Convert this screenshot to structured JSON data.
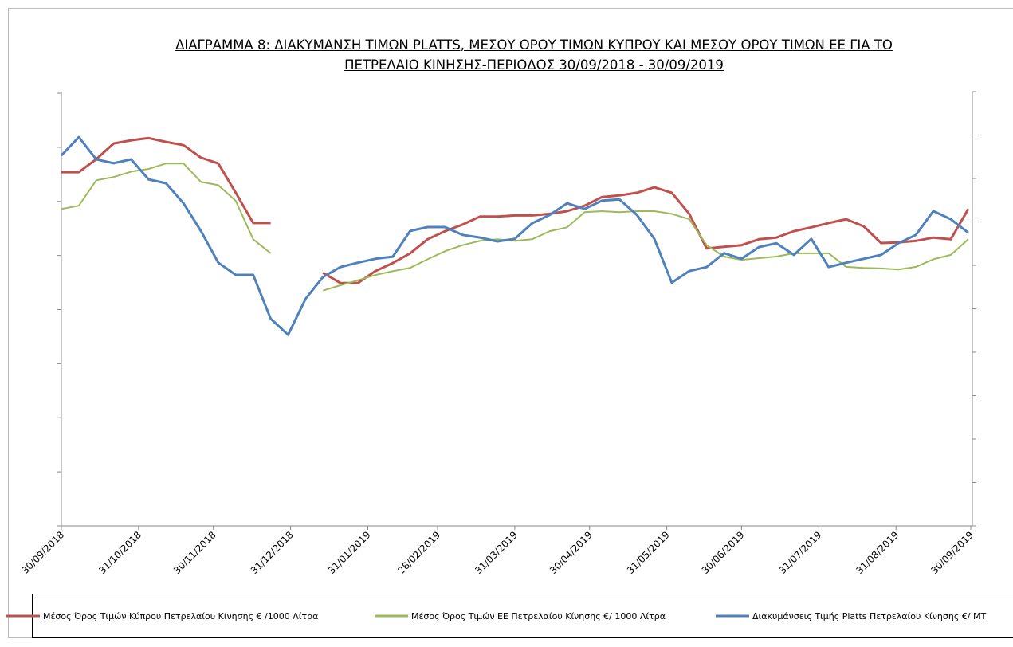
{
  "chart_data": {
    "type": "line",
    "title": "ΔΙΑΓΡΑΜΜΑ 8: ΔΙΑΚΥΜΑΝΣΗ ΤΙΜΩΝ PLATTS, ΜΕΣΟΥ ΟΡΟΥ ΤΙΜΩΝ ΚΥΠΡΟΥ ΚΑΙ ΜΕΣΟΥ ΟΡΟΥ ΤΙΜΩΝ ΕΕ ΓΙΑ ΤΟ ΠΕΤΡΕΛΑΙΟ ΚΙΝΗΣΗΣ-ΠΕΡΙΟΔΟΣ 30/09/2018 - 30/09/2019",
    "x": [
      "30/09/2018",
      "07/10/2018",
      "14/10/2018",
      "21/10/2018",
      "28/10/2018",
      "04/11/2018",
      "11/11/2018",
      "18/11/2018",
      "25/11/2018",
      "02/12/2018",
      "09/12/2018",
      "16/12/2018",
      "23/12/2018",
      "30/12/2018",
      "06/01/2019",
      "13/01/2019",
      "20/01/2019",
      "27/01/2019",
      "03/02/2019",
      "10/02/2019",
      "17/02/2019",
      "24/02/2019",
      "03/03/2019",
      "10/03/2019",
      "17/03/2019",
      "24/03/2019",
      "31/03/2019",
      "07/04/2019",
      "14/04/2019",
      "21/04/2019",
      "28/04/2019",
      "05/05/2019",
      "12/05/2019",
      "19/05/2019",
      "26/05/2019",
      "02/06/2019",
      "09/06/2019",
      "16/06/2019",
      "23/06/2019",
      "30/06/2019",
      "07/07/2019",
      "14/07/2019",
      "21/07/2019",
      "28/07/2019",
      "04/08/2019",
      "11/08/2019",
      "18/08/2019",
      "25/08/2019",
      "01/09/2019",
      "08/09/2019",
      "15/09/2019",
      "22/09/2019",
      "29/09/2019"
    ],
    "xlim": [
      "30/09/2018",
      "30/09/2019"
    ],
    "xticks": [
      "30/09/2018",
      "31/10/2018",
      "30/11/2018",
      "31/12/2018",
      "31/01/2019",
      "28/02/2019",
      "31/03/2019",
      "30/04/2019",
      "31/05/2019",
      "30/06/2019",
      "31/07/2019",
      "31/08/2019",
      "30/09/2019"
    ],
    "ylim": [
      0,
      800
    ],
    "yticks": [
      0,
      100,
      200,
      300,
      400,
      500,
      600,
      700,
      800
    ],
    "y2lim": [
      0,
      1000
    ],
    "y2ticks": [
      0,
      100,
      200,
      300,
      400,
      500,
      600,
      700,
      800,
      900,
      1000
    ],
    "series": [
      {
        "name": "Μέσος Όρος Τιμών Κύπρου Πετρελαίου Κίνησης  € /1000 Λίτρα",
        "color": "#c0504d",
        "values": [
          654,
          654,
          678,
          707,
          713,
          717,
          710,
          704,
          681,
          670,
          616,
          560,
          560,
          null,
          null,
          468,
          449,
          449,
          471,
          486,
          504,
          530,
          545,
          557,
          572,
          572,
          574,
          574,
          577,
          582,
          592,
          608,
          611,
          616,
          626,
          616,
          577,
          513,
          516,
          519,
          530,
          533,
          545,
          552,
          560,
          567,
          554,
          523,
          524,
          527,
          533,
          530,
          586
        ]
      },
      {
        "name": "Μέσος Όρος Τιμών ΕΕ Πετρελαίου Κίνησης  €/ 1000 Λίτρα",
        "color": "#9bbb59",
        "values": [
          586,
          592,
          639,
          645,
          655,
          660,
          670,
          670,
          636,
          630,
          601,
          530,
          504,
          null,
          null,
          435,
          445,
          454,
          464,
          471,
          477,
          493,
          508,
          519,
          527,
          530,
          527,
          530,
          545,
          552,
          580,
          582,
          580,
          582,
          582,
          577,
          567,
          519,
          498,
          492,
          495,
          498,
          504,
          504,
          504,
          479,
          477,
          476,
          474,
          479,
          493,
          501,
          530
        ]
      },
      {
        "name": "Διακυμάνσεις Τιμής Platts Πετρελαίου Κίνησης €/ MT",
        "color": "#4f81bd",
        "axis": "y2",
        "values": [
          853,
          895,
          844,
          835,
          844,
          798,
          789,
          743,
          679,
          606,
          578,
          578,
          477,
          440,
          523,
          573,
          596,
          606,
          615,
          620,
          679,
          688,
          688,
          670,
          664,
          655,
          661,
          697,
          716,
          743,
          730,
          749,
          752,
          716,
          661,
          560,
          587,
          596,
          628,
          615,
          642,
          651,
          624,
          661,
          596,
          606,
          615,
          624,
          651,
          670,
          725,
          706,
          675
        ]
      }
    ]
  }
}
